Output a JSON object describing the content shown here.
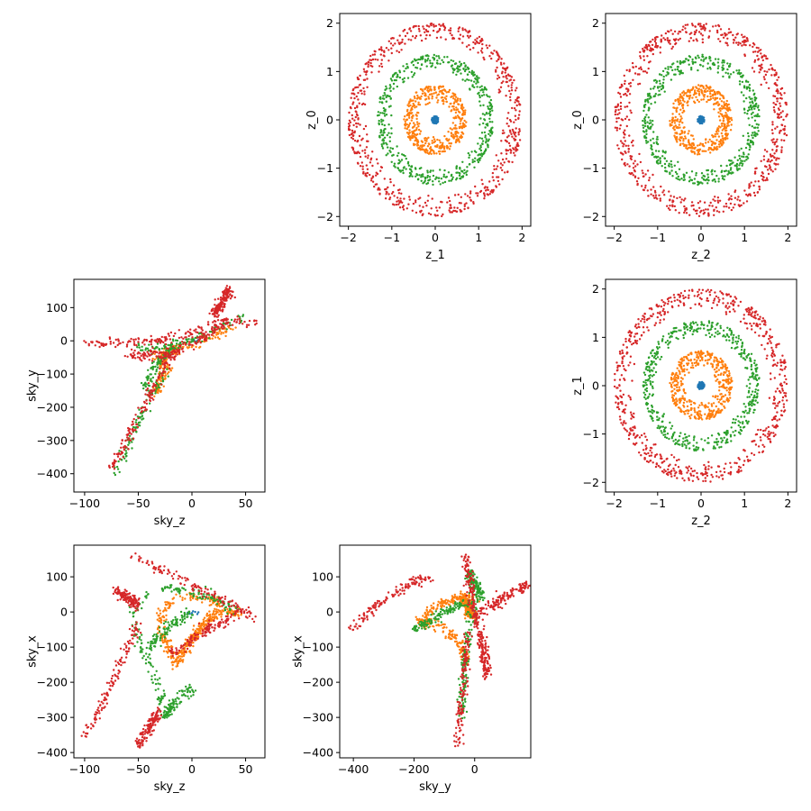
{
  "colors": {
    "blue": "#1f77b4",
    "orange": "#ff7f0e",
    "green": "#2ca02c",
    "red": "#d62728"
  },
  "chart_data": [
    {
      "type": "scatter",
      "panel": "z_1 vs z_0",
      "grid_position": "row 1, column 2",
      "xlabel": "z_1",
      "ylabel": "z_0",
      "xlim": [
        -2.2,
        2.2
      ],
      "ylim": [
        -2.2,
        2.2
      ],
      "xticks": [
        -2,
        -1,
        0,
        1,
        2
      ],
      "yticks": [
        -2,
        -1,
        0,
        1,
        2
      ],
      "grid": false,
      "series": [
        {
          "color": "blue",
          "shape": "filled disk",
          "radius_range": [
            0.0,
            0.08
          ],
          "approx_points": 60
        },
        {
          "color": "orange",
          "shape": "annulus",
          "radius_range": [
            0.35,
            0.72
          ],
          "approx_points": 450
        },
        {
          "color": "green",
          "shape": "annulus",
          "radius_range": [
            1.0,
            1.35
          ],
          "approx_points": 500
        },
        {
          "color": "red",
          "shape": "annulus",
          "radius_range": [
            1.55,
            2.0
          ],
          "approx_points": 650
        }
      ]
    },
    {
      "type": "scatter",
      "panel": "z_2 vs z_0",
      "grid_position": "row 1, column 3",
      "xlabel": "z_2",
      "ylabel": "z_0",
      "xlim": [
        -2.2,
        2.2
      ],
      "ylim": [
        -2.2,
        2.2
      ],
      "xticks": [
        -2,
        -1,
        0,
        1,
        2
      ],
      "yticks": [
        -2,
        -1,
        0,
        1,
        2
      ],
      "grid": false,
      "series": [
        {
          "color": "blue",
          "shape": "filled disk",
          "radius_range": [
            0.0,
            0.08
          ],
          "approx_points": 60
        },
        {
          "color": "orange",
          "shape": "annulus",
          "radius_range": [
            0.35,
            0.72
          ],
          "approx_points": 450
        },
        {
          "color": "green",
          "shape": "annulus",
          "radius_range": [
            1.0,
            1.35
          ],
          "approx_points": 500
        },
        {
          "color": "red",
          "shape": "annulus",
          "radius_range": [
            1.55,
            2.0
          ],
          "approx_points": 650
        }
      ]
    },
    {
      "type": "scatter",
      "panel": "sky_z vs sky_y",
      "grid_position": "row 2, column 1",
      "xlabel": "sky_z",
      "ylabel": "sky_y",
      "xlim": [
        -110,
        68
      ],
      "ylim": [
        -455,
        185
      ],
      "xticks": [
        -100,
        -50,
        0,
        50
      ],
      "yticks": [
        -400,
        -300,
        -200,
        -100,
        0,
        100
      ],
      "grid": false,
      "series": [
        {
          "color": "blue",
          "points": [
            [
              3,
              -2
            ],
            [
              5,
              0
            ],
            [
              1,
              2
            ],
            [
              6,
              3
            ],
            [
              4,
              -4
            ],
            [
              2,
              1
            ],
            [
              7,
              -1
            ]
          ]
        },
        {
          "color": "orange",
          "segments": [
            [
              [
                -40,
                -40
              ],
              [
                -18,
                -25
              ],
              [
                0,
                -10
              ],
              [
                20,
                15
              ],
              [
                40,
                45
              ]
            ],
            [
              [
                -35,
                -160
              ],
              [
                -28,
                -110
              ],
              [
                -20,
                -70
              ]
            ],
            [
              [
                -30,
                -75
              ],
              [
                -25,
                -45
              ],
              [
                -15,
                -20
              ]
            ]
          ],
          "approx_points": 260
        },
        {
          "color": "green",
          "segments": [
            [
              [
                -50,
                -20
              ],
              [
                -25,
                -20
              ],
              [
                0,
                0
              ],
              [
                25,
                35
              ],
              [
                50,
                75
              ]
            ],
            [
              [
                -70,
                -410
              ],
              [
                -60,
                -320
              ],
              [
                -50,
                -240
              ],
              [
                -40,
                -170
              ],
              [
                -25,
                -90
              ]
            ],
            [
              [
                -45,
                -140
              ],
              [
                -30,
                -60
              ],
              [
                -15,
                -10
              ]
            ]
          ],
          "approx_points": 300
        },
        {
          "color": "red",
          "segments": [
            [
              [
                -100,
                -10
              ],
              [
                -80,
                -8
              ],
              [
                -60,
                -5
              ],
              [
                -40,
                0
              ],
              [
                -20,
                10
              ],
              [
                0,
                25
              ],
              [
                20,
                45
              ],
              [
                40,
                60
              ],
              [
                60,
                55
              ]
            ],
            [
              [
                -75,
                -380
              ],
              [
                -65,
                -330
              ],
              [
                -55,
                -260
              ],
              [
                -45,
                -200
              ],
              [
                -35,
                -130
              ],
              [
                -25,
                -70
              ],
              [
                -15,
                -30
              ]
            ],
            [
              [
                -60,
                -45
              ],
              [
                -40,
                -40
              ],
              [
                -20,
                -35
              ],
              [
                0,
                -10
              ],
              [
                20,
                30
              ],
              [
                35,
                70
              ]
            ],
            [
              [
                20,
                80
              ],
              [
                28,
                115
              ],
              [
                35,
                150
              ]
            ]
          ],
          "approx_points": 650
        }
      ]
    },
    {
      "type": "scatter",
      "panel": "z_2 vs z_1",
      "grid_position": "row 2, column 3",
      "xlabel": "z_2",
      "ylabel": "z_1",
      "xlim": [
        -2.2,
        2.2
      ],
      "ylim": [
        -2.2,
        2.2
      ],
      "xticks": [
        -2,
        -1,
        0,
        1,
        2
      ],
      "yticks": [
        -2,
        -1,
        0,
        1,
        2
      ],
      "grid": false,
      "series": [
        {
          "color": "blue",
          "shape": "filled disk",
          "radius_range": [
            0.0,
            0.08
          ],
          "approx_points": 60
        },
        {
          "color": "orange",
          "shape": "annulus",
          "radius_range": [
            0.35,
            0.72
          ],
          "approx_points": 450
        },
        {
          "color": "green",
          "shape": "annulus",
          "radius_range": [
            1.0,
            1.35
          ],
          "approx_points": 500
        },
        {
          "color": "red",
          "shape": "annulus",
          "radius_range": [
            1.55,
            2.0
          ],
          "approx_points": 650
        }
      ]
    },
    {
      "type": "scatter",
      "panel": "sky_z vs sky_x",
      "grid_position": "row 3, column 1",
      "xlabel": "sky_z",
      "ylabel": "sky_x",
      "xlim": [
        -110,
        68
      ],
      "ylim": [
        -415,
        190
      ],
      "xticks": [
        -100,
        -50,
        0,
        50
      ],
      "yticks": [
        -400,
        -300,
        -200,
        -100,
        0,
        100
      ],
      "grid": false,
      "series": [
        {
          "color": "blue",
          "points": [
            [
              -2,
              -5
            ],
            [
              0,
              -3
            ],
            [
              3,
              0
            ],
            [
              5,
              -6
            ],
            [
              -4,
              -2
            ],
            [
              1,
              2
            ],
            [
              6,
              -1
            ]
          ]
        },
        {
          "color": "orange",
          "segments": [
            [
              [
                -15,
                -150
              ],
              [
                -20,
                -110
              ],
              [
                -28,
                -60
              ],
              [
                -30,
                -10
              ],
              [
                -20,
                30
              ],
              [
                0,
                45
              ],
              [
                20,
                30
              ],
              [
                35,
                0
              ],
              [
                45,
                -10
              ]
            ],
            [
              [
                -15,
                -150
              ],
              [
                -5,
                -100
              ],
              [
                5,
                -60
              ],
              [
                15,
                -20
              ],
              [
                30,
                0
              ]
            ]
          ],
          "approx_points": 420
        },
        {
          "color": "green",
          "segments": [
            [
              [
                -40,
                60
              ],
              [
                -55,
                0
              ],
              [
                -50,
                -80
              ],
              [
                -40,
                -150
              ],
              [
                -30,
                -220
              ],
              [
                -25,
                -300
              ]
            ],
            [
              [
                -25,
                -300
              ],
              [
                -15,
                -250
              ],
              [
                0,
                -220
              ]
            ],
            [
              [
                -30,
                70
              ],
              [
                0,
                60
              ],
              [
                25,
                30
              ],
              [
                45,
                0
              ]
            ],
            [
              [
                -40,
                -100
              ],
              [
                -20,
                -40
              ],
              [
                0,
                0
              ]
            ]
          ],
          "approx_points": 400
        },
        {
          "color": "red",
          "segments": [
            [
              [
                -55,
                160
              ],
              [
                -35,
                130
              ],
              [
                -15,
                100
              ],
              [
                5,
                70
              ],
              [
                25,
                40
              ],
              [
                45,
                10
              ],
              [
                60,
                -20
              ]
            ],
            [
              [
                -100,
                -350
              ],
              [
                -90,
                -300
              ],
              [
                -80,
                -240
              ],
              [
                -70,
                -170
              ],
              [
                -60,
                -100
              ],
              [
                -50,
                -30
              ]
            ],
            [
              [
                -50,
                -380
              ],
              [
                -40,
                -330
              ],
              [
                -30,
                -280
              ]
            ],
            [
              [
                -20,
                -120
              ],
              [
                0,
                -80
              ],
              [
                20,
                -40
              ],
              [
                40,
                -10
              ]
            ],
            [
              [
                -70,
                60
              ],
              [
                -60,
                40
              ],
              [
                -50,
                20
              ]
            ]
          ],
          "approx_points": 650
        }
      ]
    },
    {
      "type": "scatter",
      "panel": "sky_y vs sky_x",
      "grid_position": "row 3, column 2",
      "xlabel": "sky_y",
      "ylabel": "sky_x",
      "xlim": [
        -445,
        185
      ],
      "ylim": [
        -415,
        190
      ],
      "xticks": [
        -400,
        -200,
        0
      ],
      "yticks": [
        -400,
        -300,
        -200,
        -100,
        0,
        100
      ],
      "grid": false,
      "series": [
        {
          "color": "blue",
          "points": [
            [
              -5,
              -4
            ],
            [
              0,
              -2
            ],
            [
              4,
              1
            ],
            [
              -2,
              3
            ],
            [
              6,
              -5
            ],
            [
              2,
              0
            ]
          ]
        },
        {
          "color": "orange",
          "segments": [
            [
              [
                -180,
                -30
              ],
              [
                -140,
                10
              ],
              [
                -90,
                30
              ],
              [
                -40,
                45
              ],
              [
                0,
                30
              ]
            ],
            [
              [
                -180,
                -30
              ],
              [
                -120,
                -40
              ],
              [
                -70,
                -70
              ],
              [
                -40,
                -110
              ],
              [
                -25,
                -140
              ]
            ],
            [
              [
                -40,
                45
              ],
              [
                -20,
                0
              ],
              [
                0,
                -10
              ]
            ]
          ],
          "approx_points": 420
        },
        {
          "color": "green",
          "segments": [
            [
              [
                -200,
                -50
              ],
              [
                -150,
                -30
              ],
              [
                -100,
                0
              ],
              [
                -50,
                20
              ],
              [
                0,
                30
              ]
            ],
            [
              [
                -45,
                -300
              ],
              [
                -40,
                -220
              ],
              [
                -30,
                -140
              ],
              [
                -20,
                -60
              ],
              [
                -5,
                20
              ]
            ],
            [
              [
                -20,
                110
              ],
              [
                0,
                80
              ],
              [
                20,
                40
              ]
            ]
          ],
          "approx_points": 400
        },
        {
          "color": "red",
          "segments": [
            [
              [
                -30,
                160
              ],
              [
                -20,
                100
              ],
              [
                -10,
                40
              ],
              [
                0,
                0
              ],
              [
                10,
                -40
              ]
            ],
            [
              [
                -60,
                -380
              ],
              [
                -50,
                -300
              ],
              [
                -40,
                -220
              ],
              [
                -30,
                -140
              ],
              [
                -20,
                -60
              ]
            ],
            [
              [
                20,
                0
              ],
              [
                60,
                20
              ],
              [
                100,
                40
              ],
              [
                140,
                60
              ],
              [
                170,
                75
              ]
            ],
            [
              [
                -400,
                -50
              ],
              [
                -350,
                0
              ],
              [
                -300,
                30
              ],
              [
                -250,
                60
              ],
              [
                -200,
                90
              ],
              [
                -150,
                95
              ]
            ],
            [
              [
                20,
                -60
              ],
              [
                30,
                -120
              ],
              [
                40,
                -180
              ]
            ]
          ],
          "approx_points": 650
        }
      ]
    }
  ]
}
